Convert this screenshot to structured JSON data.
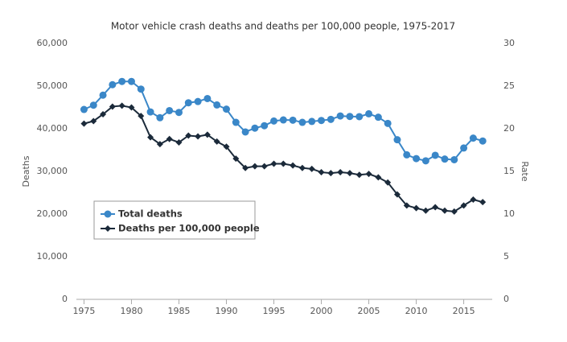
{
  "chart_data": {
    "type": "line",
    "title": "Motor vehicle crash deaths and deaths per 100,000 people, 1975-2017",
    "y_label": "Deaths",
    "y2_label": "Rate",
    "x": [
      1975,
      1976,
      1977,
      1978,
      1979,
      1980,
      1981,
      1982,
      1983,
      1984,
      1985,
      1986,
      1987,
      1988,
      1989,
      1990,
      1991,
      1992,
      1993,
      1994,
      1995,
      1996,
      1997,
      1998,
      1999,
      2000,
      2001,
      2002,
      2003,
      2004,
      2005,
      2006,
      2007,
      2008,
      2009,
      2010,
      2011,
      2012,
      2013,
      2014,
      2015,
      2016,
      2017
    ],
    "series": [
      {
        "name": "Total deaths",
        "color": "#3a87c8",
        "marker": "circle",
        "values": [
          44525,
          45523,
          47878,
          50331,
          51093,
          51091,
          49301,
          43945,
          42589,
          44257,
          43825,
          46087,
          46390,
          47087,
          45582,
          44599,
          41508,
          39250,
          40150,
          40716,
          41817,
          42065,
          42013,
          41501,
          41717,
          41945,
          42196,
          43005,
          42884,
          42836,
          43510,
          42708,
          41259,
          37423,
          33883,
          32999,
          32479,
          33782,
          32893,
          32744,
          35484,
          37806,
          37133
        ]
      },
      {
        "name": "Deaths per 100,000 people",
        "color": "#1b2a3a",
        "marker": "diamond",
        "axis": "y2",
        "values": [
          20.6,
          20.9,
          21.7,
          22.6,
          22.7,
          22.5,
          21.5,
          19.0,
          18.2,
          18.8,
          18.4,
          19.2,
          19.1,
          19.3,
          18.5,
          17.9,
          16.5,
          15.4,
          15.6,
          15.6,
          15.9,
          15.9,
          15.7,
          15.4,
          15.3,
          14.9,
          14.8,
          14.9,
          14.8,
          14.6,
          14.7,
          14.3,
          13.7,
          12.3,
          11.0,
          10.7,
          10.4,
          10.8,
          10.4,
          10.3,
          11.0,
          11.7,
          11.4
        ]
      }
    ],
    "xlim": [
      1974.2,
      2018
    ],
    "xticks": [
      1975,
      1980,
      1985,
      1990,
      1995,
      2000,
      2005,
      2010,
      2015
    ],
    "ylim": [
      0,
      60000
    ],
    "yticks": [
      0,
      {
        "value": 10000,
        "label": "10,000"
      },
      {
        "value": 20000,
        "label": "20,000"
      },
      {
        "value": 30000,
        "label": "30,000"
      },
      {
        "value": 40000,
        "label": "40,000"
      },
      {
        "value": 50000,
        "label": "50,000"
      },
      {
        "value": 60000,
        "label": "60,000"
      }
    ],
    "y2lim": [
      0,
      30
    ],
    "y2ticks": [
      0,
      5,
      10,
      15,
      20,
      25,
      30
    ],
    "grid": false,
    "legend_position": "lower left"
  }
}
